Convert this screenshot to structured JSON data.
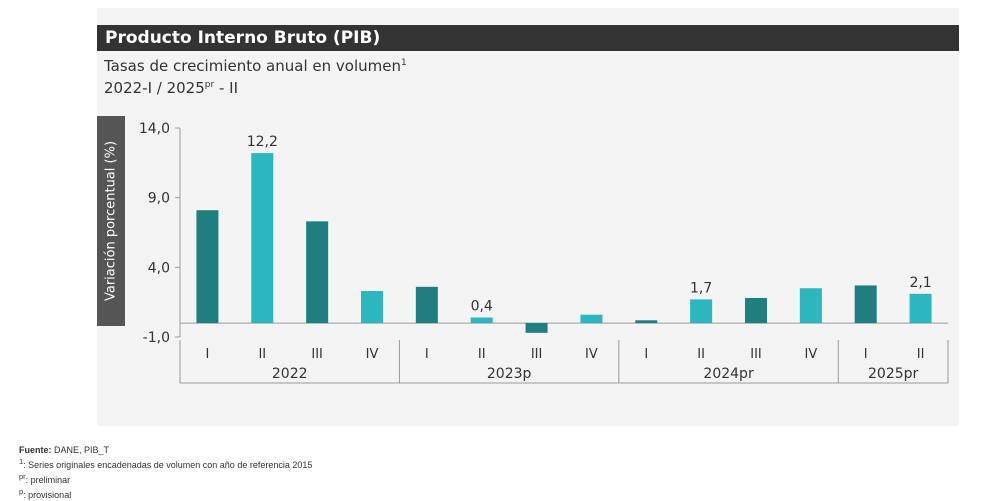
{
  "title": "Producto Interno Bruto (PIB)",
  "subtitle_line1": "Tasas de crecimiento anual en volumen",
  "subtitle_line1_sup": "1",
  "subtitle_line2": "2022-I / 2025",
  "subtitle_line2_sup": "pr",
  "subtitle_line2_end": " - II",
  "notes": {
    "source_label": "Fuente:",
    "source_text": " DANE, PIB_T",
    "note1_mark": "1",
    "note1_text": ": Series originales encadenadas de volumen con año de referencia 2015",
    "note2_mark": "pr",
    "note2_text": ": preliminar",
    "note3_mark": "p",
    "note3_text": ": provisional"
  },
  "colors": {
    "bar_dark": "#1f7f7f",
    "bar_light": "#2bb7bd",
    "axis": "#9a9a9a",
    "text": "#333333"
  },
  "chart_data": {
    "type": "bar",
    "ylabel": "Variación porcentual (%)",
    "ylim": [
      -1.0,
      14.0
    ],
    "yticks": [
      "14,0",
      "9,0",
      "4,0",
      "-1,0"
    ],
    "ytick_values": [
      14.0,
      9.0,
      4.0,
      -1.0
    ],
    "categories": [
      "I",
      "II",
      "III",
      "IV",
      "I",
      "II",
      "III",
      "IV",
      "I",
      "II",
      "III",
      "IV",
      "I",
      "II"
    ],
    "groups": [
      {
        "label": "2022",
        "count": 4
      },
      {
        "label": "2023p",
        "count": 4
      },
      {
        "label": "2024pr",
        "count": 4
      },
      {
        "label": "2025pr",
        "count": 2
      }
    ],
    "values": [
      8.1,
      12.2,
      7.3,
      2.3,
      2.6,
      0.4,
      -0.7,
      0.6,
      0.2,
      1.7,
      1.8,
      2.5,
      2.7,
      2.1
    ],
    "labeled": {
      "1": "12,2",
      "5": "0,4",
      "9": "1,7",
      "13": "2,1"
    },
    "grid": false
  }
}
